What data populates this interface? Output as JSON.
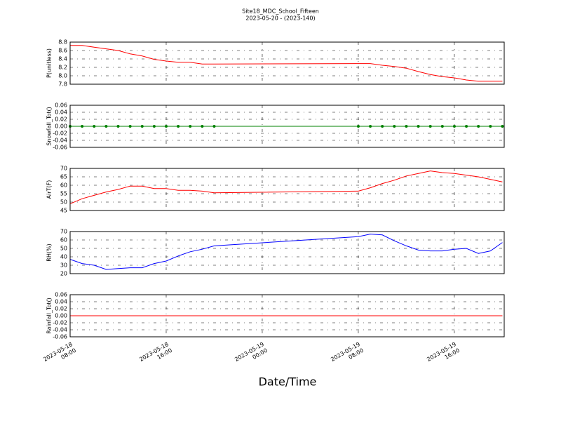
{
  "chart_data": [
    {
      "type": "line",
      "title": "Site18_MDC_School_Fifteen",
      "subtitle": "2023-05-20 - (2023-140)",
      "ylabel": "P(unitless)",
      "color": "#ff0000",
      "x": [
        "2023-05-18T08:00",
        "2023-05-18T09:00",
        "2023-05-18T10:00",
        "2023-05-18T11:00",
        "2023-05-18T12:00",
        "2023-05-18T13:00",
        "2023-05-18T14:00",
        "2023-05-18T15:00",
        "2023-05-18T16:00",
        "2023-05-18T17:00",
        "2023-05-18T18:00",
        "2023-05-18T19:00",
        "2023-05-18T20:00",
        "2023-05-19T08:00",
        "2023-05-19T09:00",
        "2023-05-19T10:00",
        "2023-05-19T11:00",
        "2023-05-19T12:00",
        "2023-05-19T13:00",
        "2023-05-19T14:00",
        "2023-05-19T15:00",
        "2023-05-19T16:00",
        "2023-05-19T17:00",
        "2023-05-19T18:00",
        "2023-05-19T19:00",
        "2023-05-19T20:00"
      ],
      "values": [
        8.72,
        8.72,
        8.68,
        8.64,
        8.6,
        8.52,
        8.47,
        8.39,
        8.35,
        8.32,
        8.32,
        8.28,
        8.28,
        8.29,
        8.29,
        8.25,
        8.22,
        8.18,
        8.1,
        8.03,
        7.98,
        7.95,
        7.9,
        7.87,
        7.87,
        7.87
      ],
      "ylim": [
        7.8,
        8.8
      ],
      "yticks": [
        7.8,
        {
          "value": 8,
          "label": "8.0"
        },
        8.2,
        8.4,
        8.6,
        8.8
      ],
      "xlim": [
        "2023-05-18T08:00",
        "2023-05-19T20:09"
      ],
      "grid": true
    },
    {
      "type": "line",
      "ylabel": "Snowfall_Tot()",
      "color": "#008000",
      "markers": true,
      "x": [
        "2023-05-18T08:00",
        "2023-05-18T09:00",
        "2023-05-18T10:00",
        "2023-05-18T11:00",
        "2023-05-18T12:00",
        "2023-05-18T13:00",
        "2023-05-18T14:00",
        "2023-05-18T15:00",
        "2023-05-18T16:00",
        "2023-05-18T17:00",
        "2023-05-18T18:00",
        "2023-05-18T19:00",
        "2023-05-18T20:00",
        "2023-05-19T08:00",
        "2023-05-19T09:00",
        "2023-05-19T10:00",
        "2023-05-19T11:00",
        "2023-05-19T12:00",
        "2023-05-19T13:00",
        "2023-05-19T14:00",
        "2023-05-19T15:00",
        "2023-05-19T16:00",
        "2023-05-19T17:00",
        "2023-05-19T18:00",
        "2023-05-19T19:00",
        "2023-05-19T20:00"
      ],
      "values": [
        0,
        0,
        0,
        0,
        0,
        0,
        0,
        0,
        0,
        0,
        0,
        0,
        0,
        0,
        0,
        0,
        0,
        0,
        0,
        0,
        0,
        0,
        0,
        0,
        0,
        0
      ],
      "ylim": [
        -0.06,
        0.06
      ],
      "yticks": [
        -0.06,
        -0.04,
        -0.02,
        {
          "value": 0,
          "label": "0.00"
        },
        0.02,
        0.04,
        0.06
      ],
      "xlim": [
        "2023-05-18T08:00",
        "2023-05-19T20:09"
      ],
      "grid": true
    },
    {
      "type": "line",
      "ylabel": "AirT(F)",
      "color": "#ff0000",
      "x": [
        "2023-05-18T08:00",
        "2023-05-18T09:00",
        "2023-05-18T10:00",
        "2023-05-18T11:00",
        "2023-05-18T12:00",
        "2023-05-18T13:00",
        "2023-05-18T14:00",
        "2023-05-18T15:00",
        "2023-05-18T16:00",
        "2023-05-18T17:00",
        "2023-05-18T18:00",
        "2023-05-18T19:00",
        "2023-05-18T20:00",
        "2023-05-19T08:00",
        "2023-05-19T09:00",
        "2023-05-19T10:00",
        "2023-05-19T11:00",
        "2023-05-19T12:00",
        "2023-05-19T13:00",
        "2023-05-19T14:00",
        "2023-05-19T15:00",
        "2023-05-19T16:00",
        "2023-05-19T17:00",
        "2023-05-19T18:00",
        "2023-05-19T19:00",
        "2023-05-19T20:00"
      ],
      "values": [
        49,
        52,
        54,
        56,
        57.5,
        59.5,
        59.5,
        58,
        58,
        57,
        57,
        56.5,
        55.5,
        56.5,
        58.5,
        61,
        63,
        65.5,
        67,
        68.5,
        67.5,
        67,
        66,
        65,
        63.5,
        62
      ],
      "ylim": [
        45,
        70
      ],
      "yticks": [
        45,
        50,
        55,
        60,
        65,
        70
      ],
      "xlim": [
        "2023-05-18T08:00",
        "2023-05-19T20:09"
      ],
      "grid": true
    },
    {
      "type": "line",
      "ylabel": "RH(%)",
      "color": "#0000ff",
      "x": [
        "2023-05-18T08:00",
        "2023-05-18T09:00",
        "2023-05-18T10:00",
        "2023-05-18T11:00",
        "2023-05-18T12:00",
        "2023-05-18T13:00",
        "2023-05-18T14:00",
        "2023-05-18T15:00",
        "2023-05-18T16:00",
        "2023-05-18T17:00",
        "2023-05-18T18:00",
        "2023-05-18T19:00",
        "2023-05-18T20:00",
        "2023-05-19T08:00",
        "2023-05-19T09:00",
        "2023-05-19T10:00",
        "2023-05-19T11:00",
        "2023-05-19T12:00",
        "2023-05-19T13:00",
        "2023-05-19T14:00",
        "2023-05-19T15:00",
        "2023-05-19T16:00",
        "2023-05-19T17:00",
        "2023-05-19T18:00",
        "2023-05-19T19:00",
        "2023-05-19T20:00"
      ],
      "values": [
        37,
        32,
        30,
        25,
        26,
        27,
        27,
        32,
        35,
        41,
        46,
        49,
        53,
        64,
        67,
        66,
        59,
        53,
        48,
        47,
        47,
        49,
        50,
        44,
        47,
        57
      ],
      "ylim": [
        20,
        70
      ],
      "yticks": [
        20,
        30,
        40,
        50,
        60,
        70
      ],
      "xlim": [
        "2023-05-18T08:00",
        "2023-05-19T20:09"
      ],
      "grid": true
    },
    {
      "type": "line",
      "ylabel": "Rainfall_Tot()",
      "color": "#ff0000",
      "xlabel": "Date/Time",
      "x": [
        "2023-05-18T08:00",
        "2023-05-18T09:00",
        "2023-05-18T10:00",
        "2023-05-18T11:00",
        "2023-05-18T12:00",
        "2023-05-18T13:00",
        "2023-05-18T14:00",
        "2023-05-18T15:00",
        "2023-05-18T16:00",
        "2023-05-18T17:00",
        "2023-05-18T18:00",
        "2023-05-18T19:00",
        "2023-05-18T20:00",
        "2023-05-19T08:00",
        "2023-05-19T09:00",
        "2023-05-19T10:00",
        "2023-05-19T11:00",
        "2023-05-19T12:00",
        "2023-05-19T13:00",
        "2023-05-19T14:00",
        "2023-05-19T15:00",
        "2023-05-19T16:00",
        "2023-05-19T17:00",
        "2023-05-19T18:00",
        "2023-05-19T19:00",
        "2023-05-19T20:00"
      ],
      "values": [
        0,
        0,
        0,
        0,
        0,
        0,
        0,
        0,
        0,
        0,
        0,
        0,
        0,
        0,
        0,
        0,
        0,
        0,
        0,
        0,
        0,
        0,
        0,
        0,
        0,
        0
      ],
      "ylim": [
        -0.06,
        0.06
      ],
      "yticks": [
        -0.06,
        -0.04,
        -0.02,
        {
          "value": 0,
          "label": "0.00"
        },
        0.02,
        0.04,
        0.06
      ],
      "xlim": [
        "2023-05-18T08:00",
        "2023-05-19T20:09"
      ],
      "grid": true,
      "xticks": [
        {
          "value": "2023-05-18T08:00",
          "label": "2023-05-18\n08:00"
        },
        {
          "value": "2023-05-18T16:00",
          "label": "2023-05-18\n16:00"
        },
        {
          "value": "2023-05-19T00:00",
          "label": "2023-05-19\n00:00"
        },
        {
          "value": "2023-05-19T08:00",
          "label": "2023-05-19\n08:00"
        },
        {
          "value": "2023-05-19T16:00",
          "label": "2023-05-19\n16:00"
        }
      ]
    }
  ]
}
